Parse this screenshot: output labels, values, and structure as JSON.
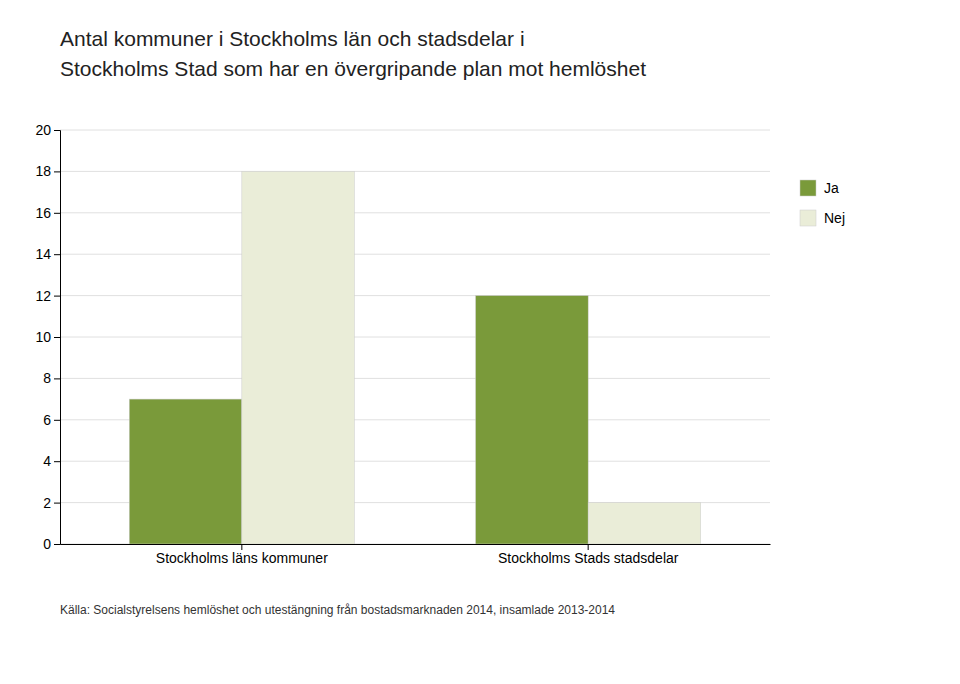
{
  "chart_data": {
    "type": "bar",
    "title": [
      "Antal kommuner i Stockholms län och stadsdelar i",
      "Stockholms Stad som har en övergripande plan mot hemlöshet"
    ],
    "source": "Källa: Socialstyrelsens hemlöshet och utestängning från bostadsmarknaden 2014, insamlade 2013-2014",
    "categories": [
      "Stockholms läns kommuner",
      "Stockholms Stads stadsdelar"
    ],
    "series": [
      {
        "name": "Ja",
        "color": "#7a9a3a",
        "values": [
          7,
          12
        ]
      },
      {
        "name": "Nej",
        "color": "#eaedd8",
        "values": [
          18,
          2
        ]
      }
    ],
    "ylim": [
      0,
      20
    ],
    "yticks": [
      0,
      2,
      4,
      6,
      8,
      10,
      12,
      14,
      16,
      18,
      20
    ],
    "grid": true,
    "legend": "right"
  }
}
